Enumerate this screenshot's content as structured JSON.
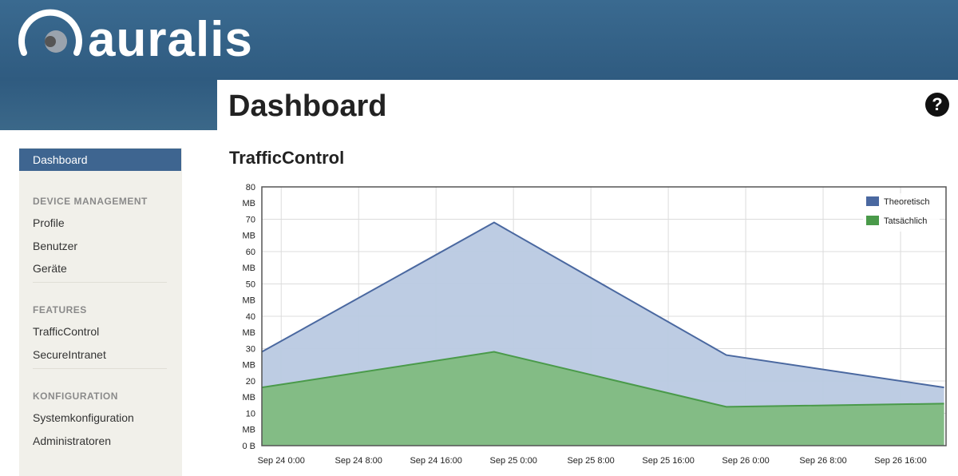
{
  "header": {
    "logo": "auralis"
  },
  "page": {
    "title": "Dashboard",
    "help_icon": "?",
    "section_title": "TrafficControl"
  },
  "sidebar": {
    "active": "Dashboard",
    "sections": [
      {
        "heading": "DEVICE MANAGEMENT",
        "items": [
          "Profile",
          "Benutzer",
          "Geräte"
        ]
      },
      {
        "heading": "FEATURES",
        "items": [
          "TrafficControl",
          "SecureIntranet"
        ]
      },
      {
        "heading": "KONFIGURATION",
        "items": [
          "Systemkonfiguration",
          "Administratoren"
        ]
      }
    ]
  },
  "chart_data": {
    "type": "area",
    "x": [
      -2,
      22,
      46,
      68.5
    ],
    "xlim": [
      -2,
      68.7
    ],
    "xticks": [
      {
        "value": 0,
        "label": "Sep 24 0:00"
      },
      {
        "value": 8,
        "label": "Sep 24 8:00"
      },
      {
        "value": 16,
        "label": "Sep 24 16:00"
      },
      {
        "value": 24,
        "label": "Sep 25 0:00"
      },
      {
        "value": 32,
        "label": "Sep 25 8:00"
      },
      {
        "value": 40,
        "label": "Sep 25 16:00"
      },
      {
        "value": 48,
        "label": "Sep 26 0:00"
      },
      {
        "value": 56,
        "label": "Sep 26 8:00"
      },
      {
        "value": 64,
        "label": "Sep 26 16:00"
      }
    ],
    "ylim": [
      0,
      80
    ],
    "yticks": [
      {
        "value": 0,
        "label": "0 B"
      },
      {
        "value": 10,
        "label": "10 MB"
      },
      {
        "value": 20,
        "label": "20 MB"
      },
      {
        "value": 30,
        "label": "30 MB"
      },
      {
        "value": 40,
        "label": "40 MB"
      },
      {
        "value": 50,
        "label": "50 MB"
      },
      {
        "value": 60,
        "label": "60 MB"
      },
      {
        "value": 70,
        "label": "70 MB"
      },
      {
        "value": 80,
        "label": "80 MB"
      }
    ],
    "grid": true,
    "legend": "upper right",
    "series": [
      {
        "name": "Theoretisch",
        "color": "#4a68a0",
        "fill": "#b9c9e2",
        "values": [
          29,
          69,
          28,
          18
        ]
      },
      {
        "name": "Tatsächlich",
        "color": "#4a9a4a",
        "fill": "#7fba7f",
        "values": [
          18,
          29,
          12,
          13
        ]
      }
    ]
  }
}
